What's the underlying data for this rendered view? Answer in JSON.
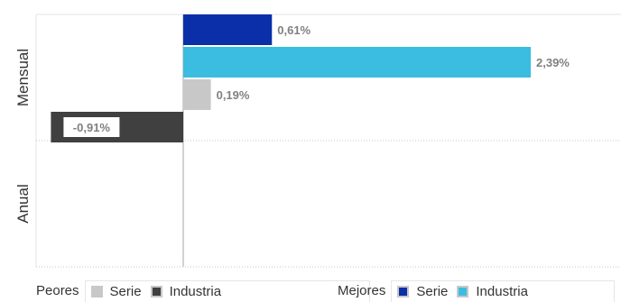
{
  "chart_data": {
    "type": "bar",
    "orientation": "horizontal",
    "categories": [
      "Mensual",
      "Anual"
    ],
    "series": [
      {
        "name": "Serie",
        "group": "Mejores",
        "color": "#0a2fa8",
        "values": [
          0.61,
          null
        ]
      },
      {
        "name": "Industria",
        "group": "Mejores",
        "color": "#3bbde2",
        "values": [
          2.39,
          null
        ]
      },
      {
        "name": "Serie",
        "group": "Peores",
        "color": "#c8c8c8",
        "values": [
          0.19,
          null
        ]
      },
      {
        "name": "Industria",
        "group": "Peores",
        "color": "#404040",
        "values": [
          -0.91,
          null
        ]
      }
    ],
    "data_labels": [
      {
        "series": 0,
        "category": 0,
        "text": "0,61%"
      },
      {
        "series": 1,
        "category": 0,
        "text": "2,39%"
      },
      {
        "series": 2,
        "category": 0,
        "text": "0,19%"
      },
      {
        "series": 3,
        "category": 0,
        "text": "-0,91%"
      }
    ],
    "xlim": [
      -1.3,
      2.5
    ],
    "grid": true,
    "legend_placement": "bottom"
  },
  "legend": {
    "peores": {
      "title": "Peores",
      "items": [
        {
          "label": "Serie",
          "color": "#c8c8c8"
        },
        {
          "label": "Industria",
          "color": "#404040"
        }
      ]
    },
    "mejores": {
      "title": "Mejores",
      "items": [
        {
          "label": "Serie",
          "color": "#0a2fa8"
        },
        {
          "label": "Industria",
          "color": "#3bbde2"
        }
      ]
    }
  }
}
